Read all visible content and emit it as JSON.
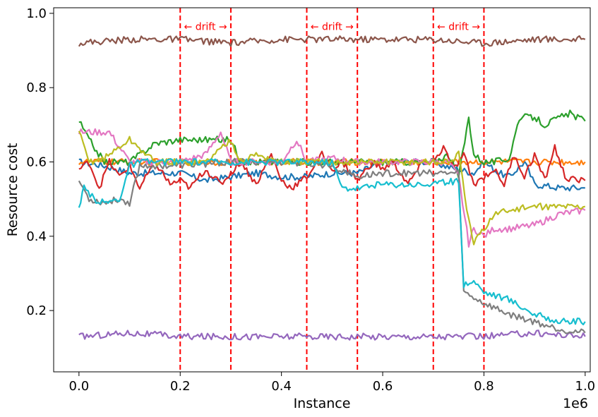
{
  "chart_data": {
    "type": "line",
    "title": "",
    "xlabel": "Instance",
    "ylabel": "Resource cost",
    "x_offset_label": "1e6",
    "xlim": [
      -0.05,
      1.01
    ],
    "ylim": [
      0.035,
      1.015
    ],
    "xticks": [
      0.0,
      0.2,
      0.4,
      0.6,
      0.8,
      1.0
    ],
    "xtick_labels": [
      "0.0",
      "0.2",
      "0.4",
      "0.6",
      "0.8",
      "1.0"
    ],
    "yticks": [
      0.2,
      0.4,
      0.6,
      0.8,
      1.0
    ],
    "ytick_labels": [
      "0.2",
      "0.4",
      "0.6",
      "0.8",
      "1.0"
    ],
    "grid": false,
    "legend": "none",
    "drift_lines": [
      0.2,
      0.3,
      0.45,
      0.55,
      0.7,
      0.8
    ],
    "drift_line_color": "#ff0000",
    "drift_annotations": [
      {
        "x_start": 0.2,
        "x_end": 0.3,
        "text": "← drift →"
      },
      {
        "x_start": 0.45,
        "x_end": 0.55,
        "text": "← drift →"
      },
      {
        "x_start": 0.7,
        "x_end": 0.8,
        "text": "← drift →"
      }
    ],
    "series": [
      {
        "color": "#1f77b4",
        "x": [
          0,
          0.05,
          0.1,
          0.15,
          0.2,
          0.25,
          0.3,
          0.35,
          0.4,
          0.45,
          0.5,
          0.55,
          0.6,
          0.65,
          0.7,
          0.72,
          0.75,
          0.78,
          0.8,
          0.83,
          0.85,
          0.88,
          0.9,
          0.95,
          1.0
        ],
        "y": [
          0.6,
          0.59,
          0.57,
          0.57,
          0.57,
          0.55,
          0.56,
          0.57,
          0.56,
          0.56,
          0.57,
          0.57,
          0.6,
          0.6,
          0.6,
          0.59,
          0.58,
          0.57,
          0.6,
          0.57,
          0.56,
          0.6,
          0.54,
          0.53,
          0.53
        ]
      },
      {
        "color": "#ff7f0e",
        "x": [
          0,
          0.1,
          0.2,
          0.3,
          0.4,
          0.5,
          0.6,
          0.7,
          0.8,
          0.9,
          1.0
        ],
        "y": [
          0.6,
          0.6,
          0.6,
          0.6,
          0.6,
          0.6,
          0.6,
          0.6,
          0.6,
          0.6,
          0.6
        ]
      },
      {
        "color": "#2ca02c",
        "x": [
          0,
          0.02,
          0.05,
          0.1,
          0.15,
          0.2,
          0.25,
          0.3,
          0.32,
          0.35,
          0.4,
          0.45,
          0.5,
          0.55,
          0.6,
          0.65,
          0.7,
          0.73,
          0.75,
          0.77,
          0.78,
          0.8,
          0.82,
          0.85,
          0.87,
          0.9,
          0.92,
          0.95,
          0.97,
          1.0
        ],
        "y": [
          0.71,
          0.66,
          0.6,
          0.6,
          0.65,
          0.66,
          0.66,
          0.66,
          0.6,
          0.6,
          0.6,
          0.6,
          0.6,
          0.6,
          0.6,
          0.6,
          0.6,
          0.62,
          0.56,
          0.72,
          0.62,
          0.6,
          0.6,
          0.61,
          0.72,
          0.72,
          0.7,
          0.72,
          0.73,
          0.71
        ]
      },
      {
        "color": "#d62728",
        "x": [
          0,
          0.02,
          0.04,
          0.06,
          0.08,
          0.1,
          0.12,
          0.15,
          0.18,
          0.2,
          0.22,
          0.25,
          0.28,
          0.3,
          0.32,
          0.35,
          0.38,
          0.4,
          0.42,
          0.45,
          0.48,
          0.5,
          0.52,
          0.55,
          0.58,
          0.6,
          0.62,
          0.65,
          0.68,
          0.7,
          0.72,
          0.74,
          0.76,
          0.78,
          0.8,
          0.82,
          0.84,
          0.86,
          0.88,
          0.9,
          0.92,
          0.94,
          0.96,
          0.98,
          1.0
        ],
        "y": [
          0.58,
          0.6,
          0.53,
          0.6,
          0.56,
          0.59,
          0.53,
          0.6,
          0.54,
          0.55,
          0.53,
          0.58,
          0.54,
          0.57,
          0.6,
          0.54,
          0.62,
          0.55,
          0.53,
          0.56,
          0.62,
          0.58,
          0.6,
          0.55,
          0.6,
          0.58,
          0.6,
          0.54,
          0.6,
          0.6,
          0.64,
          0.58,
          0.62,
          0.54,
          0.56,
          0.58,
          0.54,
          0.62,
          0.56,
          0.62,
          0.55,
          0.64,
          0.56,
          0.55,
          0.55
        ]
      },
      {
        "color": "#9467bd",
        "x": [
          0,
          0.1,
          0.2,
          0.3,
          0.4,
          0.5,
          0.6,
          0.7,
          0.8,
          0.9,
          1.0
        ],
        "y": [
          0.13,
          0.14,
          0.13,
          0.13,
          0.13,
          0.13,
          0.13,
          0.13,
          0.13,
          0.14,
          0.13
        ]
      },
      {
        "color": "#8c564b",
        "x": [
          0,
          0.1,
          0.2,
          0.3,
          0.4,
          0.5,
          0.6,
          0.7,
          0.8,
          0.9,
          1.0
        ],
        "y": [
          0.92,
          0.93,
          0.93,
          0.92,
          0.93,
          0.93,
          0.93,
          0.93,
          0.92,
          0.93,
          0.93
        ]
      },
      {
        "color": "#e377c2",
        "x": [
          0,
          0.02,
          0.06,
          0.1,
          0.15,
          0.2,
          0.25,
          0.28,
          0.3,
          0.35,
          0.4,
          0.43,
          0.45,
          0.5,
          0.55,
          0.6,
          0.65,
          0.7,
          0.73,
          0.75,
          0.77,
          0.78,
          0.8,
          0.82,
          0.85,
          0.9,
          0.95,
          1.0
        ],
        "y": [
          0.68,
          0.68,
          0.68,
          0.6,
          0.6,
          0.6,
          0.62,
          0.68,
          0.6,
          0.6,
          0.6,
          0.66,
          0.6,
          0.61,
          0.6,
          0.6,
          0.6,
          0.6,
          0.6,
          0.56,
          0.38,
          0.42,
          0.4,
          0.42,
          0.42,
          0.43,
          0.46,
          0.47
        ]
      },
      {
        "color": "#7f7f7f",
        "x": [
          0,
          0.02,
          0.05,
          0.08,
          0.1,
          0.12,
          0.2,
          0.3,
          0.4,
          0.5,
          0.55,
          0.6,
          0.7,
          0.75,
          0.76,
          0.8,
          0.85,
          0.9,
          0.95,
          1.0
        ],
        "y": [
          0.55,
          0.5,
          0.49,
          0.5,
          0.49,
          0.59,
          0.59,
          0.6,
          0.6,
          0.59,
          0.56,
          0.57,
          0.57,
          0.57,
          0.25,
          0.22,
          0.19,
          0.17,
          0.15,
          0.14
        ]
      },
      {
        "color": "#bcbd22",
        "x": [
          0,
          0.02,
          0.05,
          0.1,
          0.15,
          0.2,
          0.25,
          0.3,
          0.32,
          0.35,
          0.4,
          0.45,
          0.5,
          0.55,
          0.6,
          0.65,
          0.7,
          0.73,
          0.75,
          0.77,
          0.78,
          0.8,
          0.82,
          0.85,
          0.9,
          0.95,
          1.0
        ],
        "y": [
          0.68,
          0.6,
          0.61,
          0.66,
          0.6,
          0.6,
          0.6,
          0.66,
          0.6,
          0.62,
          0.6,
          0.6,
          0.6,
          0.6,
          0.6,
          0.6,
          0.6,
          0.6,
          0.62,
          0.44,
          0.38,
          0.42,
          0.46,
          0.47,
          0.48,
          0.48,
          0.48
        ]
      },
      {
        "color": "#17becf",
        "x": [
          0,
          0.01,
          0.03,
          0.05,
          0.08,
          0.1,
          0.12,
          0.2,
          0.3,
          0.4,
          0.5,
          0.52,
          0.55,
          0.6,
          0.65,
          0.7,
          0.75,
          0.76,
          0.78,
          0.8,
          0.85,
          0.9,
          0.95,
          1.0
        ],
        "y": [
          0.47,
          0.53,
          0.5,
          0.49,
          0.5,
          0.59,
          0.6,
          0.6,
          0.6,
          0.6,
          0.6,
          0.53,
          0.53,
          0.54,
          0.54,
          0.54,
          0.55,
          0.27,
          0.28,
          0.25,
          0.23,
          0.19,
          0.17,
          0.17
        ]
      }
    ]
  }
}
